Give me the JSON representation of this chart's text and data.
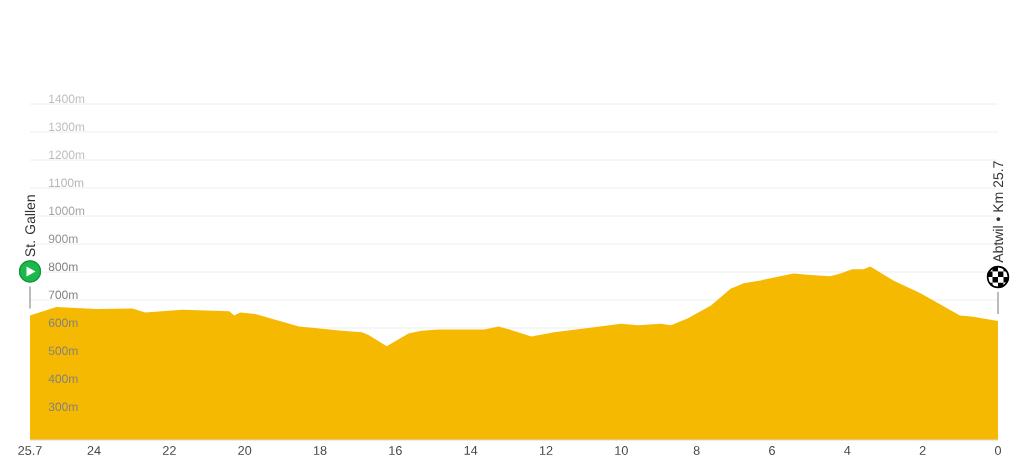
{
  "chart_data": {
    "type": "area",
    "x": [
      25.7,
      25.0,
      23.93,
      22.98,
      22.64,
      21.66,
      20.41,
      20.28,
      20.12,
      19.72,
      18.56,
      18.14,
      17.42,
      16.89,
      16.71,
      16.23,
      15.65,
      15.3,
      14.85,
      13.64,
      13.26,
      12.97,
      12.39,
      11.78,
      10.88,
      10.01,
      9.56,
      8.95,
      8.68,
      8.23,
      7.62,
      7.1,
      6.75,
      6.3,
      5.43,
      5.06,
      4.45,
      4.18,
      3.87,
      3.57,
      3.39,
      2.78,
      2.07,
      1.01,
      0.66,
      0
    ],
    "values": [
      645,
      675,
      668,
      670,
      655,
      665,
      660,
      645,
      655,
      650,
      605,
      600,
      590,
      585,
      575,
      535,
      580,
      590,
      595,
      595,
      605,
      595,
      570,
      585,
      600,
      615,
      610,
      615,
      610,
      635,
      680,
      740,
      760,
      770,
      795,
      790,
      785,
      795,
      810,
      810,
      820,
      770,
      725,
      645,
      640,
      625
    ],
    "color": "#f6b902",
    "xlim": [
      25.7,
      0
    ],
    "xticks": [
      25.7,
      24,
      22,
      20,
      18,
      16,
      14,
      12,
      10,
      8,
      6,
      4,
      2,
      0
    ],
    "ylim": [
      200,
      1400
    ],
    "yticks": [
      {
        "value": 300,
        "label": "300m"
      },
      {
        "value": 400,
        "label": "400m"
      },
      {
        "value": 500,
        "label": "500m"
      },
      {
        "value": 600,
        "label": "600m"
      },
      {
        "value": 700,
        "label": "700m"
      },
      {
        "value": 800,
        "label": "800m"
      },
      {
        "value": 900,
        "label": "900m"
      },
      {
        "value": 1000,
        "label": "1000m"
      },
      {
        "value": 1100,
        "label": "1100m"
      },
      {
        "value": 1200,
        "label": "1200m"
      },
      {
        "value": 1300,
        "label": "1300m"
      },
      {
        "value": 1400,
        "label": "1400m"
      }
    ],
    "grid": "y",
    "annotations": [
      "St. Gallen",
      "Abtwil • Km 25.7"
    ]
  }
}
